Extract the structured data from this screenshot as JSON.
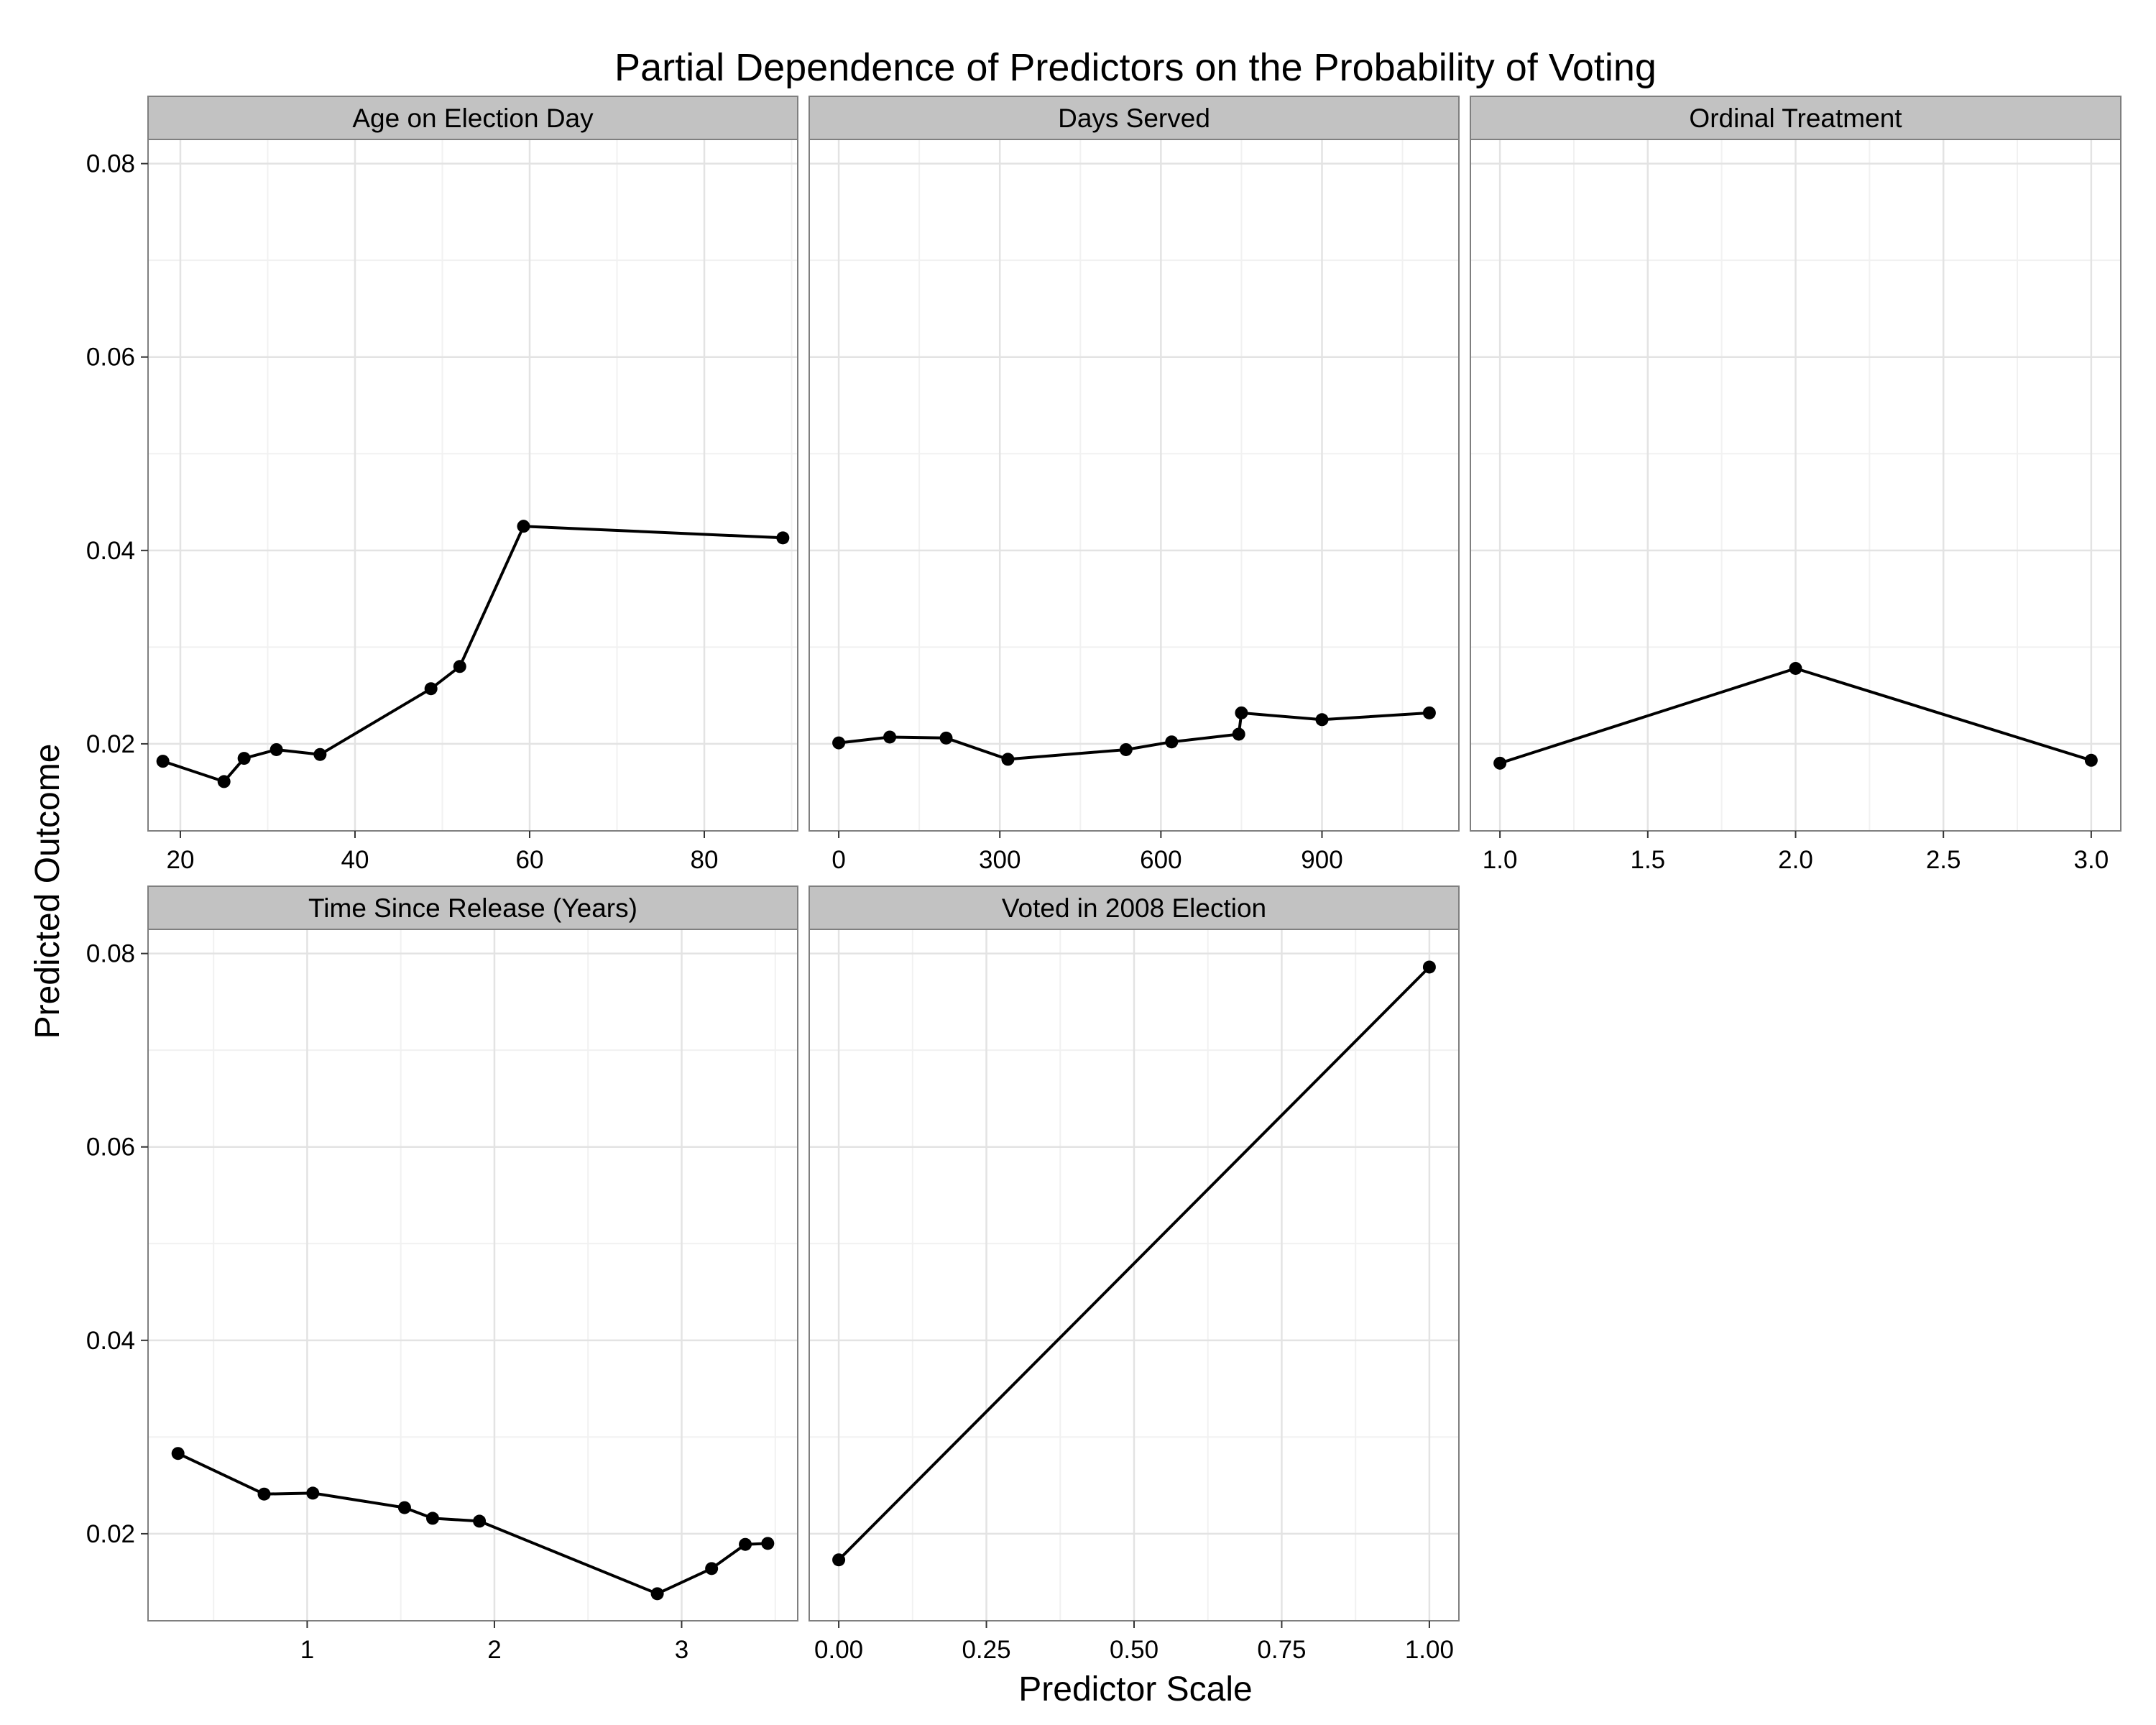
{
  "chart_data": {
    "type": "line",
    "title": "Partial Dependence of Predictors on the Probability of Voting",
    "xlabel": "Predictor Scale",
    "ylabel": "Predicted Outcome",
    "grid": true,
    "legend": "none",
    "ylim": [
      0.011,
      0.0825
    ],
    "y_ticks": [
      0.02,
      0.04,
      0.06,
      0.08
    ],
    "y_tick_labels": [
      "0.02",
      "0.04",
      "0.06",
      "0.08"
    ],
    "colors": {
      "panel_bg": "#ffffff",
      "strip_bg": "#c2c2c2",
      "border": "#7f7f7f",
      "grid_major": "#e3e3e3",
      "grid_minor": "#f1f1f1",
      "line": "#000000",
      "text": "#000000"
    },
    "facets": [
      {
        "name": "Age on Election Day",
        "xlim": [
          16.3,
          90.7
        ],
        "x_ticks": [
          20,
          40,
          60,
          80
        ],
        "x_tick_labels": [
          "20",
          "40",
          "60",
          "80"
        ],
        "x": [
          18,
          25,
          27.3,
          31,
          36,
          48.7,
          52,
          59.3,
          89
        ],
        "y": [
          0.0182,
          0.0161,
          0.0185,
          0.0194,
          0.0189,
          0.0257,
          0.028,
          0.0425,
          0.0413
        ]
      },
      {
        "name": "Days Served",
        "xlim": [
          -55,
          1155
        ],
        "x_ticks": [
          0,
          300,
          600,
          900
        ],
        "x_tick_labels": [
          "0",
          "300",
          "600",
          "900"
        ],
        "x": [
          0,
          95,
          200,
          315,
          535,
          620,
          745,
          750,
          900,
          1100
        ],
        "y": [
          0.0201,
          0.0207,
          0.0206,
          0.0184,
          0.0194,
          0.0202,
          0.021,
          0.0232,
          0.0225,
          0.0232
        ]
      },
      {
        "name": "Ordinal Treatment",
        "xlim": [
          0.9,
          3.1
        ],
        "x_ticks": [
          1.0,
          1.5,
          2.0,
          2.5,
          3.0
        ],
        "x_tick_labels": [
          "1.0",
          "1.5",
          "2.0",
          "2.5",
          "3.0"
        ],
        "x": [
          1,
          2,
          3
        ],
        "y": [
          0.018,
          0.0278,
          0.0183
        ]
      },
      {
        "name": "Time Since Release (Years)",
        "xlim": [
          0.15,
          3.62
        ],
        "x_ticks": [
          1,
          2,
          3
        ],
        "x_tick_labels": [
          "1",
          "2",
          "3"
        ],
        "x": [
          0.31,
          0.77,
          1.03,
          1.52,
          1.67,
          1.92,
          2.87,
          3.16,
          3.34,
          3.46
        ],
        "y": [
          0.0283,
          0.0241,
          0.0242,
          0.0227,
          0.0216,
          0.0213,
          0.0138,
          0.0164,
          0.0189,
          0.019
        ]
      },
      {
        "name": "Voted in 2008 Election",
        "xlim": [
          -0.05,
          1.05
        ],
        "x_ticks": [
          0,
          0.25,
          0.5,
          0.75,
          1
        ],
        "x_tick_labels": [
          "0.00",
          "0.25",
          "0.50",
          "0.75",
          "1.00"
        ],
        "x": [
          0,
          1
        ],
        "y": [
          0.0173,
          0.0786
        ]
      }
    ]
  }
}
